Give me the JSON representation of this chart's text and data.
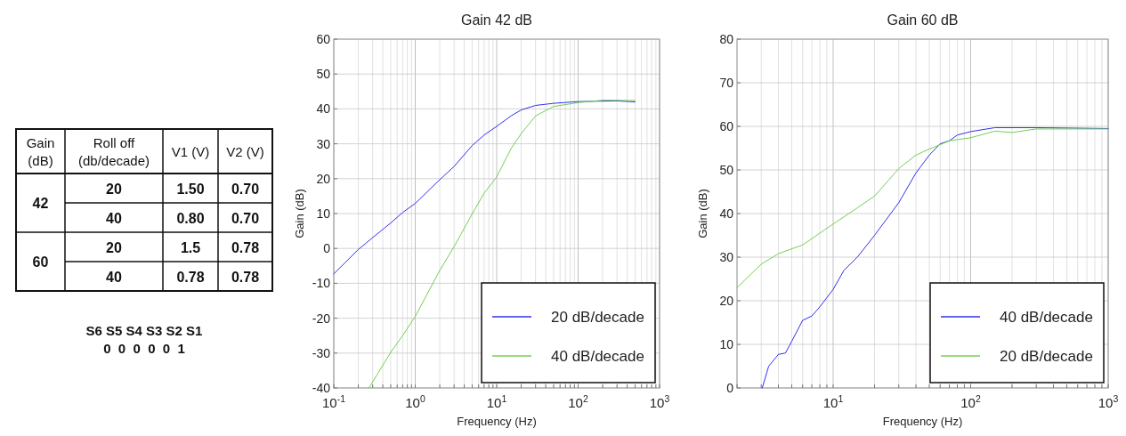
{
  "chart_data": [
    {
      "type": "other",
      "categories": [
        "Gain\n(dB)",
        "Roll off\n(db/decade)",
        "V1 (V)",
        "V2 (V)"
      ],
      "cell_labels": [
        [
          "42",
          "20",
          "1.50",
          "0.70"
        ],
        [
          null,
          "40",
          "0.80",
          "0.70"
        ],
        [
          "60",
          "20",
          "1.5",
          "0.78"
        ],
        [
          null,
          "40",
          "0.78",
          "0.78"
        ]
      ],
      "annotations": [
        "S6 S5 S4 S3 S2 S1",
        "0  0  0  0  0  1"
      ]
    },
    {
      "type": "line",
      "title": "Gain 42 dB",
      "xlabel": "Frequency (Hz)",
      "ylabel": "Gain (dB)",
      "log": "x",
      "grid": true,
      "legend": "bottom right",
      "marker": "none",
      "line_style": "solid",
      "xlim": [
        0.1,
        1000
      ],
      "ylim": [
        -40,
        60
      ],
      "yticks": [
        -40,
        -30,
        -20,
        -10,
        0,
        10,
        20,
        30,
        40,
        50,
        60
      ],
      "xticks": [
        {
          "value": 0.1,
          "label": "10$^{-1}$"
        },
        {
          "value": 0.2,
          "label": null
        },
        {
          "value": 0.3,
          "label": null
        },
        {
          "value": 0.4,
          "label": null
        },
        {
          "value": 0.5,
          "label": null
        },
        {
          "value": 0.6,
          "label": null
        },
        {
          "value": 0.7,
          "label": null
        },
        {
          "value": 0.8,
          "label": null
        },
        {
          "value": 0.9,
          "label": null
        },
        {
          "value": 1,
          "label": "10$^{0}$"
        },
        {
          "value": 2,
          "label": null
        },
        {
          "value": 3,
          "label": null
        },
        {
          "value": 4,
          "label": null
        },
        {
          "value": 5,
          "label": null
        },
        {
          "value": 6,
          "label": null
        },
        {
          "value": 7,
          "label": null
        },
        {
          "value": 8,
          "label": null
        },
        {
          "value": 9,
          "label": null
        },
        {
          "value": 10,
          "label": "10$^{1}$"
        },
        {
          "value": 20,
          "label": null
        },
        {
          "value": 30,
          "label": null
        },
        {
          "value": 40,
          "label": null
        },
        {
          "value": 50,
          "label": null
        },
        {
          "value": 60,
          "label": null
        },
        {
          "value": 70,
          "label": null
        },
        {
          "value": 80,
          "label": null
        },
        {
          "value": 90,
          "label": null
        },
        {
          "value": 100,
          "label": "10$^{2}$"
        },
        {
          "value": 200,
          "label": null
        },
        {
          "value": 300,
          "label": null
        },
        {
          "value": 400,
          "label": null
        },
        {
          "value": 500,
          "label": null
        },
        {
          "value": 600,
          "label": null
        },
        {
          "value": 700,
          "label": null
        },
        {
          "value": 800,
          "label": null
        },
        {
          "value": 900,
          "label": null
        },
        {
          "value": 1000,
          "label": "10$^{3}$"
        }
      ],
      "series": [
        {
          "name": "20 dB/decade",
          "color": "#3030f0",
          "x": [
            0.1,
            0.2,
            0.3,
            0.5,
            0.7,
            1,
            2,
            3,
            5,
            7,
            10,
            15,
            20,
            30,
            50,
            100,
            300,
            500
          ],
          "values": [
            -7.3,
            -0.3,
            3.1,
            7.3,
            10.3,
            12.9,
            19.7,
            23.5,
            29.5,
            32.5,
            35,
            38,
            39.7,
            41,
            41.6,
            42.1,
            42.3,
            42
          ]
        },
        {
          "name": "40 dB/decade",
          "color": "#70d050",
          "x": [
            0.27,
            0.5,
            0.7,
            1,
            2,
            3,
            5,
            7,
            10,
            15,
            20,
            30,
            50,
            100,
            200,
            500
          ],
          "values": [
            -40,
            -29.8,
            -25,
            -19.5,
            -6.3,
            0.5,
            9.9,
            15.8,
            20.5,
            28.6,
            32.9,
            38,
            40.7,
            41.8,
            42.5,
            42.4
          ]
        }
      ]
    },
    {
      "type": "line",
      "title": "Gain 60 dB",
      "xlabel": "Frequency (Hz)",
      "ylabel": "Gain (dB)",
      "log": "x",
      "grid": true,
      "legend": "bottom right",
      "marker": "none",
      "line_style": "solid",
      "xlim": [
        2,
        1000
      ],
      "ylim": [
        0,
        80
      ],
      "yticks": [
        0,
        10,
        20,
        30,
        40,
        50,
        60,
        70,
        80
      ],
      "xticks": [
        {
          "value": 2,
          "label": null
        },
        {
          "value": 3,
          "label": null
        },
        {
          "value": 4,
          "label": null
        },
        {
          "value": 5,
          "label": null
        },
        {
          "value": 6,
          "label": null
        },
        {
          "value": 7,
          "label": null
        },
        {
          "value": 8,
          "label": null
        },
        {
          "value": 9,
          "label": null
        },
        {
          "value": 10,
          "label": "10$^{1}$"
        },
        {
          "value": 20,
          "label": null
        },
        {
          "value": 30,
          "label": null
        },
        {
          "value": 40,
          "label": null
        },
        {
          "value": 50,
          "label": null
        },
        {
          "value": 60,
          "label": null
        },
        {
          "value": 70,
          "label": null
        },
        {
          "value": 80,
          "label": null
        },
        {
          "value": 90,
          "label": null
        },
        {
          "value": 100,
          "label": "10$^{2}$"
        },
        {
          "value": 200,
          "label": null
        },
        {
          "value": 300,
          "label": null
        },
        {
          "value": 400,
          "label": null
        },
        {
          "value": 500,
          "label": null
        },
        {
          "value": 600,
          "label": null
        },
        {
          "value": 700,
          "label": null
        },
        {
          "value": 800,
          "label": null
        },
        {
          "value": 900,
          "label": null
        },
        {
          "value": 1000,
          "label": "10$^{3}$"
        }
      ],
      "series": [
        {
          "name": "40 dB/decade",
          "color": "#3030f0",
          "x": [
            3.05,
            3.4,
            4,
            4.5,
            5,
            6,
            7,
            8,
            10,
            12,
            15,
            20,
            30,
            40,
            50,
            60,
            70,
            80,
            100,
            150,
            300,
            1000
          ],
          "values": [
            0,
            5,
            7.7,
            8,
            10.7,
            15.5,
            16.5,
            18.6,
            22.6,
            27,
            30,
            35,
            42.5,
            49.3,
            53.4,
            56,
            56.7,
            58,
            58.8,
            59.7,
            59.7,
            59.5
          ]
        },
        {
          "name": "20 dB/decade",
          "color": "#70d050",
          "x": [
            2,
            3,
            4,
            6,
            10,
            15,
            20,
            30,
            40,
            50,
            60,
            70,
            100,
            150,
            200,
            300,
            1000
          ],
          "values": [
            23,
            28.4,
            30.8,
            32.8,
            37.6,
            41.3,
            44,
            50.3,
            53.4,
            54.8,
            55.8,
            56.7,
            57.4,
            58.9,
            58.6,
            59.4,
            59.4
          ]
        }
      ]
    }
  ]
}
